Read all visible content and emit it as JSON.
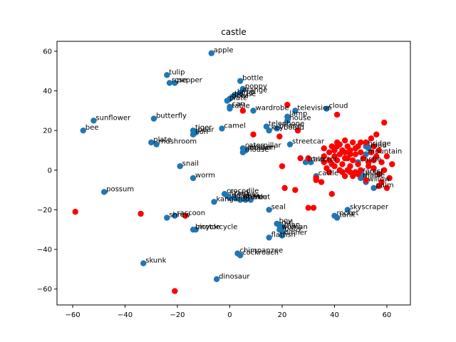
{
  "chart_data": {
    "type": "scatter",
    "title": "castle",
    "xlabel": "",
    "ylabel": "",
    "xlim": [
      -66,
      69
    ],
    "ylim": [
      -68,
      65
    ],
    "grid": false,
    "xticks": [
      -60,
      -40,
      -20,
      0,
      20,
      40,
      60
    ],
    "yticks": [
      -60,
      -40,
      -20,
      0,
      20,
      40,
      60
    ],
    "colors": {
      "labeled": "#1f77b4",
      "unlabeled": "#ff0000"
    },
    "labeled_points": [
      {
        "x": -7,
        "y": 59,
        "label": "apple"
      },
      {
        "x": 4,
        "y": 45,
        "label": "bottle"
      },
      {
        "x": -24,
        "y": 48,
        "label": "tulip"
      },
      {
        "x": -23,
        "y": 44,
        "label": "rose"
      },
      {
        "x": -21,
        "y": 44,
        "label": "pepper"
      },
      {
        "x": 5,
        "y": 41,
        "label": "poppy"
      },
      {
        "x": 4,
        "y": 39,
        "label": "orange"
      },
      {
        "x": 2,
        "y": 38,
        "label": "lamp"
      },
      {
        "x": 1,
        "y": 37,
        "label": "house"
      },
      {
        "x": 0,
        "y": 36,
        "label": "bowl"
      },
      {
        "x": -1,
        "y": 35,
        "label": "plate"
      },
      {
        "x": 0,
        "y": 32,
        "label": "can"
      },
      {
        "x": 0,
        "y": 31,
        "label": "table"
      },
      {
        "x": 9,
        "y": 30,
        "label": "wardrobe"
      },
      {
        "x": 37,
        "y": 31,
        "label": "cloud"
      },
      {
        "x": 25,
        "y": 30,
        "label": "television"
      },
      {
        "x": 22,
        "y": 27,
        "label": "lamp"
      },
      {
        "x": 22,
        "y": 25,
        "label": "house"
      },
      {
        "x": -29,
        "y": 26,
        "label": "butterfly"
      },
      {
        "x": -52,
        "y": 25,
        "label": "sunflower"
      },
      {
        "x": -56,
        "y": 20,
        "label": "bee"
      },
      {
        "x": -3,
        "y": 21,
        "label": "camel"
      },
      {
        "x": -14,
        "y": 20,
        "label": "tiger"
      },
      {
        "x": -13,
        "y": 19,
        "label": "bear"
      },
      {
        "x": -14,
        "y": 18,
        "label": "lion"
      },
      {
        "x": 14,
        "y": 22,
        "label": "telephone"
      },
      {
        "x": 15,
        "y": 20,
        "label": "keyboard"
      },
      {
        "x": 18,
        "y": 21,
        "label": "phone"
      },
      {
        "x": 23,
        "y": 13,
        "label": "streetcar"
      },
      {
        "x": -30,
        "y": 14,
        "label": "plate"
      },
      {
        "x": -28,
        "y": 13,
        "label": "mushroom"
      },
      {
        "x": 5,
        "y": 11,
        "label": "caterpillar"
      },
      {
        "x": 6,
        "y": 10,
        "label": "lobster"
      },
      {
        "x": 5,
        "y": 9,
        "label": "mouse"
      },
      {
        "x": 6,
        "y": 10,
        "label": "possum"
      },
      {
        "x": 52,
        "y": 12,
        "label": "bridge"
      },
      {
        "x": 53,
        "y": 11,
        "label": "road"
      },
      {
        "x": 52,
        "y": 8,
        "label": "mountain"
      },
      {
        "x": 49,
        "y": 4,
        "label": "castle"
      },
      {
        "x": 29,
        "y": 4,
        "label": "train"
      },
      {
        "x": 31,
        "y": 4,
        "label": "tractor"
      },
      {
        "x": 33,
        "y": -3,
        "label": "cattle"
      },
      {
        "x": -19,
        "y": 2,
        "label": "snail"
      },
      {
        "x": -14,
        "y": -4,
        "label": "worm"
      },
      {
        "x": 50,
        "y": -2,
        "label": "forest"
      },
      {
        "x": 51,
        "y": -3,
        "label": "plain"
      },
      {
        "x": 50,
        "y": -4,
        "label": "maple"
      },
      {
        "x": 52,
        "y": -6,
        "label": "willow"
      },
      {
        "x": 55,
        "y": -9,
        "label": "palm"
      },
      {
        "x": -48,
        "y": -11,
        "label": "possum"
      },
      {
        "x": -6,
        "y": -16,
        "label": "kangaroo"
      },
      {
        "x": -2,
        "y": -12,
        "label": "crocodile"
      },
      {
        "x": -1,
        "y": -13,
        "label": "lizard"
      },
      {
        "x": 0,
        "y": -14,
        "label": "dolphin"
      },
      {
        "x": 2,
        "y": -14,
        "label": "shark"
      },
      {
        "x": 4,
        "y": -15,
        "label": "whale"
      },
      {
        "x": 6,
        "y": -15,
        "label": "turtle"
      },
      {
        "x": 8,
        "y": -15,
        "label": "trout"
      },
      {
        "x": 15,
        "y": -20,
        "label": "seal"
      },
      {
        "x": 45,
        "y": -20,
        "label": "skyscraper"
      },
      {
        "x": 40,
        "y": -23,
        "label": "rocket"
      },
      {
        "x": 41,
        "y": -24,
        "label": "tank"
      },
      {
        "x": -24,
        "y": -24,
        "label": "shrew"
      },
      {
        "x": -21,
        "y": -23,
        "label": "raccoon"
      },
      {
        "x": -14,
        "y": -30,
        "label": "bicycle"
      },
      {
        "x": -13,
        "y": -30,
        "label": "motorcycle"
      },
      {
        "x": 18,
        "y": -27,
        "label": "boy"
      },
      {
        "x": 19,
        "y": -28,
        "label": "girl"
      },
      {
        "x": 20,
        "y": -29,
        "label": "man"
      },
      {
        "x": 19,
        "y": -30,
        "label": "woman"
      },
      {
        "x": 20,
        "y": -31,
        "label": "baby"
      },
      {
        "x": 20,
        "y": -33,
        "label": "dinner"
      },
      {
        "x": 15,
        "y": -34,
        "label": "flatfish"
      },
      {
        "x": 3,
        "y": -42,
        "label": "chimpanzee"
      },
      {
        "x": 4,
        "y": -43,
        "label": "cockroach"
      },
      {
        "x": -33,
        "y": -47,
        "label": "skunk"
      },
      {
        "x": -5,
        "y": -55,
        "label": "dinosaur"
      }
    ],
    "unlabeled_points": [
      {
        "x": -59,
        "y": -21
      },
      {
        "x": -34,
        "y": -22
      },
      {
        "x": -17,
        "y": -23
      },
      {
        "x": -21,
        "y": -61
      },
      {
        "x": 5,
        "y": 30
      },
      {
        "x": 9,
        "y": 18
      },
      {
        "x": 19,
        "y": 17
      },
      {
        "x": 20,
        "y": 2
      },
      {
        "x": 21,
        "y": -9
      },
      {
        "x": 25,
        "y": -10
      },
      {
        "x": 26,
        "y": 20
      },
      {
        "x": 22,
        "y": 33
      },
      {
        "x": 41,
        "y": 28
      },
      {
        "x": 32,
        "y": -19
      },
      {
        "x": 33,
        "y": -4
      },
      {
        "x": 30,
        "y": -19
      },
      {
        "x": 33,
        "y": -5
      },
      {
        "x": 35,
        "y": -6
      },
      {
        "x": 39,
        "y": -12
      },
      {
        "x": 27,
        "y": 6
      },
      {
        "x": 30,
        "y": 6
      },
      {
        "x": 36,
        "y": 4
      },
      {
        "x": 36,
        "y": 7
      },
      {
        "x": 37,
        "y": 1
      },
      {
        "x": 38,
        "y": 5
      },
      {
        "x": 39,
        "y": 3
      },
      {
        "x": 40,
        "y": 7
      },
      {
        "x": 40,
        "y": 10
      },
      {
        "x": 41,
        "y": 5
      },
      {
        "x": 41,
        "y": 12
      },
      {
        "x": 42,
        "y": 0
      },
      {
        "x": 42,
        "y": 8
      },
      {
        "x": 43,
        "y": 3
      },
      {
        "x": 43,
        "y": -1
      },
      {
        "x": 44,
        "y": 9
      },
      {
        "x": 44,
        "y": 15
      },
      {
        "x": 45,
        "y": 6
      },
      {
        "x": 45,
        "y": 12
      },
      {
        "x": 46,
        "y": 2
      },
      {
        "x": 46,
        "y": 10
      },
      {
        "x": 47,
        "y": 5
      },
      {
        "x": 47,
        "y": 14
      },
      {
        "x": 48,
        "y": 8
      },
      {
        "x": 48,
        "y": -1
      },
      {
        "x": 49,
        "y": 12
      },
      {
        "x": 49,
        "y": 3
      },
      {
        "x": 50,
        "y": 9
      },
      {
        "x": 50,
        "y": 0
      },
      {
        "x": 51,
        "y": 6
      },
      {
        "x": 52,
        "y": 14
      },
      {
        "x": 53,
        "y": 4
      },
      {
        "x": 54,
        "y": 16
      },
      {
        "x": 54,
        "y": 9
      },
      {
        "x": 55,
        "y": 1
      },
      {
        "x": 55,
        "y": 12
      },
      {
        "x": 56,
        "y": 7
      },
      {
        "x": 56,
        "y": 18
      },
      {
        "x": 57,
        "y": -2
      },
      {
        "x": 57,
        "y": 10
      },
      {
        "x": 58,
        "y": 4
      },
      {
        "x": 58,
        "y": -6
      },
      {
        "x": 59,
        "y": 0
      },
      {
        "x": 59,
        "y": 24
      },
      {
        "x": 60,
        "y": 7
      },
      {
        "x": 61,
        "y": -4
      },
      {
        "x": 62,
        "y": 3
      },
      {
        "x": 44,
        "y": -3
      },
      {
        "x": 45,
        "y": 0
      },
      {
        "x": 38,
        "y": 9
      },
      {
        "x": 39,
        "y": 12
      },
      {
        "x": 41,
        "y": 14
      },
      {
        "x": 43,
        "y": 10
      },
      {
        "x": 46,
        "y": -1
      },
      {
        "x": 47,
        "y": -3
      },
      {
        "x": 49,
        "y": -2
      },
      {
        "x": 52,
        "y": -5
      },
      {
        "x": 53,
        "y": 2
      },
      {
        "x": 55,
        "y": 5
      },
      {
        "x": 57,
        "y": -8
      },
      {
        "x": 60,
        "y": -9
      },
      {
        "x": 36,
        "y": 11
      },
      {
        "x": 38,
        "y": -1
      },
      {
        "x": 40,
        "y": 2
      },
      {
        "x": 42,
        "y": 13
      },
      {
        "x": 44,
        "y": 6
      },
      {
        "x": 46,
        "y": 8
      },
      {
        "x": 48,
        "y": 11
      },
      {
        "x": 50,
        "y": 14
      }
    ]
  }
}
